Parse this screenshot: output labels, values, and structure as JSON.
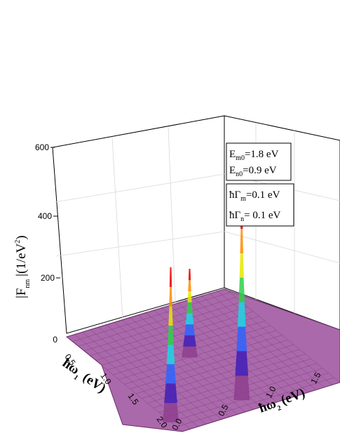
{
  "chart_data": {
    "type": "surface",
    "title": "",
    "x_axis": {
      "label_main": "ħω",
      "label_sub": "2",
      "label_unit": "(eV)",
      "range": [
        0.0,
        2.0
      ],
      "ticks": [
        "0.0",
        "0.5",
        "1.0",
        "1.5"
      ]
    },
    "y_axis": {
      "label_main": "ħω",
      "label_sub": "1",
      "label_unit": "(eV)",
      "range": [
        0.0,
        2.0
      ],
      "ticks": [
        "0.0",
        "0.5",
        "1.0",
        "1.5",
        "2.0"
      ]
    },
    "z_axis": {
      "label_main": "|F",
      "label_sub": "nm",
      "label_unit": "|(1/eV",
      "label_sup": "2",
      "label_close": ")",
      "range": [
        0,
        600
      ],
      "ticks": [
        "0",
        "200",
        "400",
        "600"
      ]
    },
    "peaks": [
      {
        "omega1": 1.8,
        "omega2": 0.0,
        "value": 490
      },
      {
        "omega1": 1.8,
        "omega2": 0.9,
        "value": 620
      },
      {
        "omega1": 0.9,
        "omega2": 0.9,
        "value": 280
      }
    ],
    "colorscale": [
      "#8e3f8e",
      "#3f1fb8",
      "#2e64ff",
      "#19d8e6",
      "#2ed14a",
      "#e8e800",
      "#ff8c00",
      "#e80000"
    ],
    "grid": true,
    "legend": "none"
  },
  "params": {
    "box1": [
      {
        "main": "E",
        "sub": "m0",
        "rest": "=1.8 eV"
      },
      {
        "main": "E",
        "sub": "n0",
        "rest": "=0.9 eV"
      }
    ],
    "box2": [
      {
        "main": "ħΓ",
        "sub": "m",
        "rest": "=0.1 eV"
      },
      {
        "main": "ħΓ",
        "sub": "n",
        "rest": "= 0.1 eV"
      }
    ]
  }
}
